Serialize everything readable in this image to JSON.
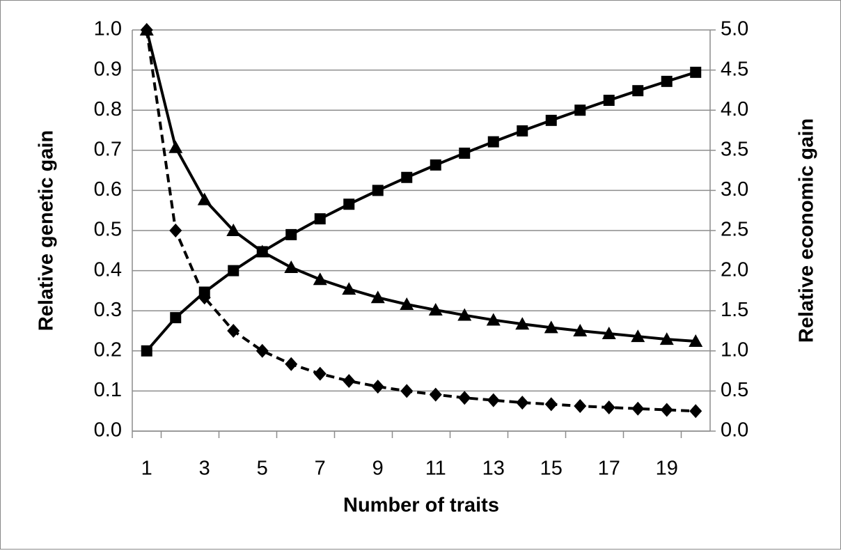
{
  "chart_data": {
    "type": "line",
    "xlabel": "Number of traits",
    "ylabel": "Relative genetic gain",
    "y2label": "Relative economic gain",
    "categories": [
      1,
      null,
      3,
      null,
      5,
      null,
      7,
      null,
      9,
      null,
      11,
      null,
      13,
      null,
      15,
      null,
      17,
      null,
      19,
      null
    ],
    "series": [
      {
        "color": "#000000",
        "marker": "triangle",
        "dashed": false,
        "values": [
          1,
          0.707,
          0.577,
          0.5,
          0.447,
          0.408,
          0.378,
          0.354,
          0.333,
          0.316,
          0.302,
          0.289,
          0.277,
          0.267,
          0.258,
          0.25,
          0.243,
          0.236,
          0.229,
          0.224
        ]
      },
      {
        "color": "#000000",
        "marker": "diamond",
        "dashed": true,
        "values": [
          1,
          0.5,
          0.333,
          0.25,
          0.2,
          0.167,
          0.143,
          0.125,
          0.111,
          0.1,
          0.091,
          0.083,
          0.077,
          0.071,
          0.067,
          0.0625,
          0.059,
          0.056,
          0.053,
          0.05
        ]
      },
      {
        "color": "#000000",
        "marker": "square",
        "dashed": false,
        "axis": "y2",
        "values": [
          1,
          1.414,
          1.732,
          2,
          2.236,
          2.449,
          2.646,
          2.828,
          3,
          3.162,
          3.317,
          3.464,
          3.606,
          3.742,
          3.873,
          4,
          4.123,
          4.243,
          4.359,
          4.472
        ]
      }
    ],
    "ylim": [
      0,
      1
    ],
    "yticks": [
      {
        "value": 0,
        "label": "0.0"
      },
      0.1,
      0.2,
      0.3,
      0.4,
      0.5,
      0.6,
      0.7,
      0.8,
      0.9,
      {
        "value": 1,
        "label": "1.0"
      }
    ],
    "y2lim": [
      0,
      5
    ],
    "y2ticks": [
      {
        "value": 0,
        "label": "0.0"
      },
      0.5,
      {
        "value": 1,
        "label": "1.0"
      },
      1.5,
      {
        "value": 2,
        "label": "2.0"
      },
      2.5,
      {
        "value": 3,
        "label": "3.0"
      },
      3.5,
      {
        "value": 4,
        "label": "4.0"
      },
      4.5,
      {
        "value": 5,
        "label": "5.0"
      }
    ],
    "grid": true
  }
}
